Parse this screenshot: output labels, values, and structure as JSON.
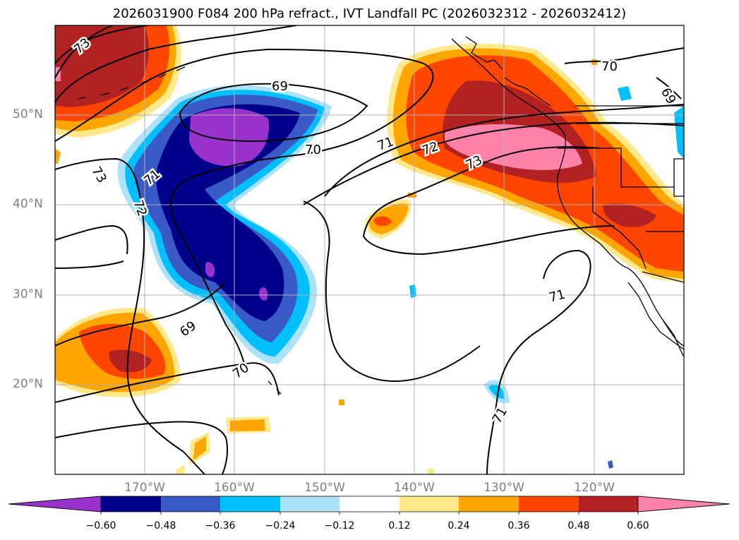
{
  "title": "2026031900 F084 200 hPa refract., IVT Landfall PC (2026032312 - 2026032412)",
  "lat_labels": [
    "20°N",
    "30°N",
    "40°N",
    "50°N"
  ],
  "lon_labels": [
    "170°W",
    "160°W",
    "150°W",
    "140°W",
    "130°W",
    "120°W"
  ],
  "contour_labels": [
    "73",
    "69",
    "70",
    "71",
    "72",
    "73",
    "70",
    "69",
    "73",
    "71",
    "72",
    "71",
    "69",
    "70",
    "71"
  ],
  "colorbar": {
    "ticks": [
      "−0.60",
      "−0.48",
      "−0.36",
      "−0.24",
      "−0.12",
      "0.12",
      "0.24",
      "0.36",
      "0.48",
      "0.60"
    ],
    "colors": [
      "#9932cc",
      "#00008b",
      "#3a5bc7",
      "#00bfff",
      "#ade3fa",
      "#ffffff",
      "#ffe98a",
      "#ffa500",
      "#ff4500",
      "#b22222",
      "#ff82ab"
    ]
  }
}
